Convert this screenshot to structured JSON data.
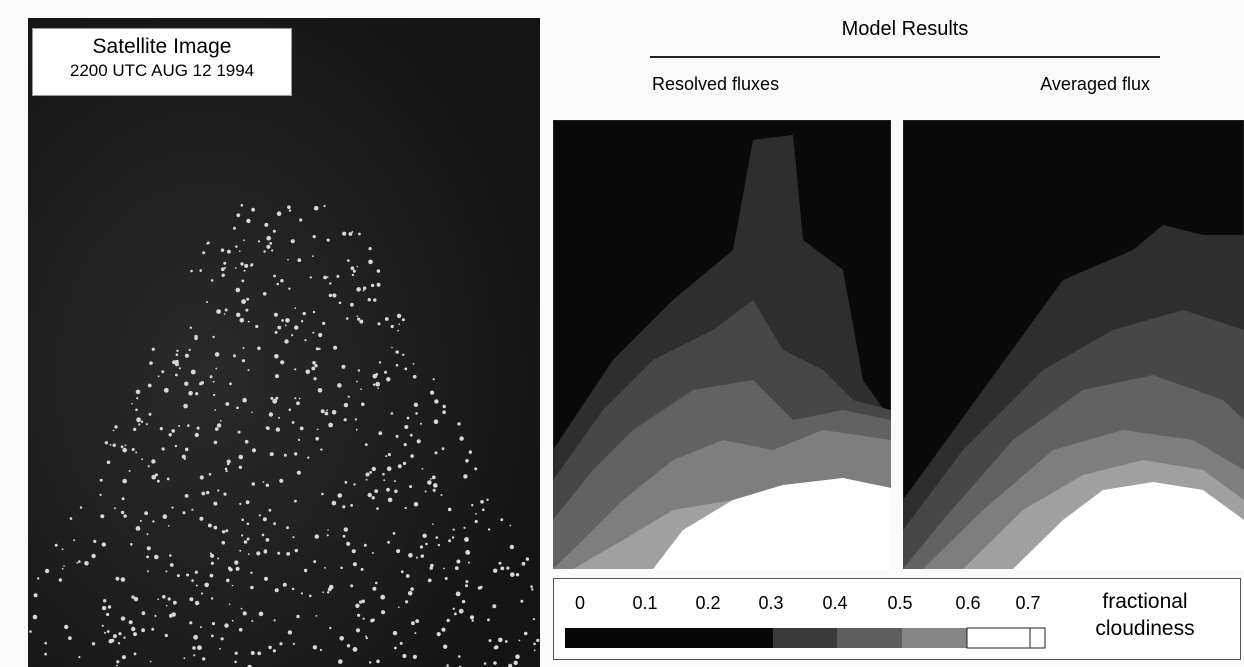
{
  "satellite": {
    "title": "Satellite Image",
    "timestamp": "2200 UTC AUG 12 1994"
  },
  "model": {
    "title": "Model Results",
    "panels": [
      "Resolved fluxes",
      "Averaged flux"
    ]
  },
  "colorbar": {
    "ticks": [
      "0",
      "0.1",
      "0.2",
      "0.3",
      "0.4",
      "0.5",
      "0.6",
      "0.7"
    ],
    "label": "fractional cloudiness"
  }
}
